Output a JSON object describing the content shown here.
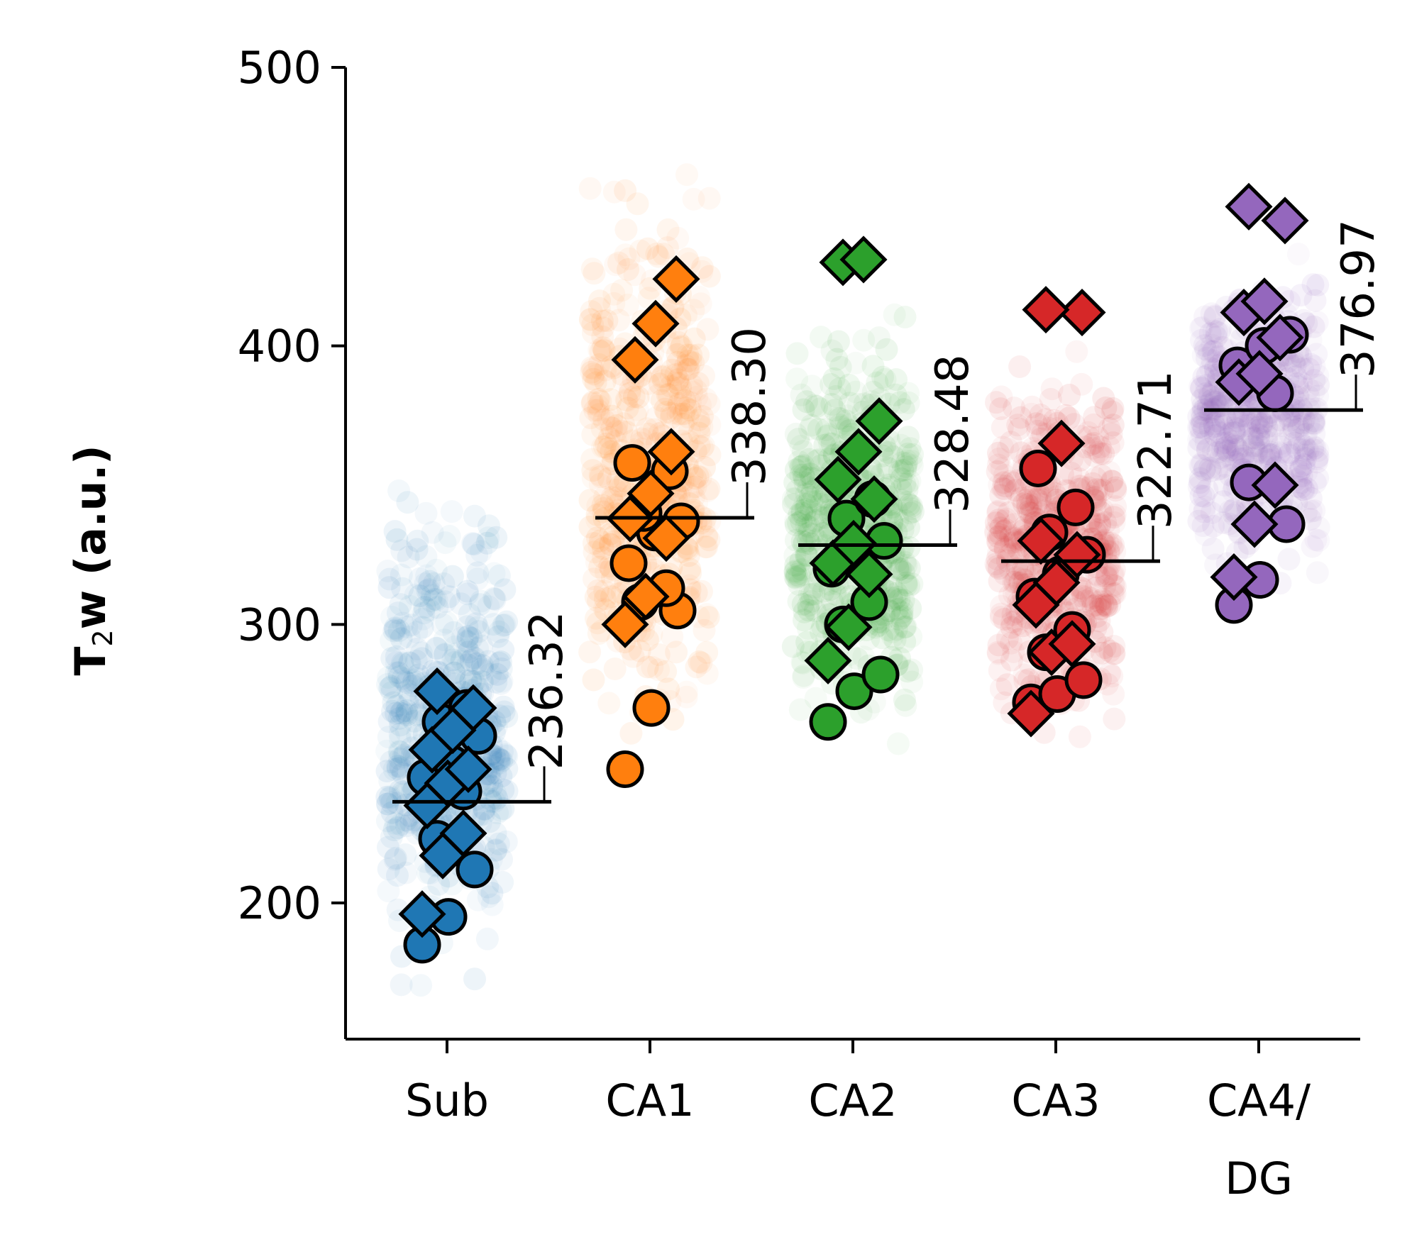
{
  "chart_data": {
    "type": "scatter",
    "ylabel": {
      "main": "T",
      "sub": "2",
      "rest": "w (a.u.)"
    },
    "ylim": [
      150,
      500
    ],
    "yticks": [
      200,
      300,
      400,
      500
    ],
    "categories": [
      {
        "lines": [
          "Sub"
        ]
      },
      {
        "lines": [
          "CA1"
        ]
      },
      {
        "lines": [
          "CA2"
        ]
      },
      {
        "lines": [
          "CA3"
        ]
      },
      {
        "lines": [
          "CA4/",
          "DG"
        ]
      }
    ],
    "series": [
      {
        "color": "#1f77b4",
        "mean": 236.32,
        "mean_label": "236.32",
        "cloud_range": [
          166,
          355
        ],
        "circles": [
          185,
          195,
          212,
          223,
          240,
          245,
          250,
          260,
          265,
          270
        ],
        "diamonds": [
          196,
          217,
          225,
          235,
          243,
          248,
          255,
          262,
          270,
          276
        ]
      },
      {
        "color": "#ff7f0e",
        "mean": 338.3,
        "mean_label": "338.30",
        "cloud_range": [
          250,
          465
        ],
        "circles": [
          248,
          270,
          305,
          308,
          313,
          322,
          333,
          337,
          340,
          355,
          358
        ],
        "diamonds": [
          300,
          310,
          331,
          338,
          347,
          362,
          395,
          408,
          424
        ]
      },
      {
        "color": "#2ca02c",
        "mean": 328.48,
        "mean_label": "328.48",
        "cloud_range": [
          258,
          412
        ],
        "circles": [
          265,
          276,
          282,
          300,
          308,
          320,
          325,
          330,
          338,
          345
        ],
        "diamonds": [
          287,
          299,
          318,
          322,
          329,
          345,
          352,
          362,
          373,
          430,
          431
        ]
      },
      {
        "color": "#d62728",
        "mean": 322.71,
        "mean_label": "322.71",
        "cloud_range": [
          253,
          405
        ],
        "circles": [
          272,
          275,
          280,
          290,
          298,
          310,
          318,
          325,
          333,
          342,
          356
        ],
        "diamonds": [
          268,
          290,
          293,
          307,
          315,
          325,
          330,
          365,
          412,
          413
        ]
      },
      {
        "color": "#9467bd",
        "mean": 376.97,
        "mean_label": "376.97",
        "cloud_range": [
          312,
          435
        ],
        "circles": [
          307,
          316,
          336,
          351,
          383,
          393,
          400,
          404
        ],
        "diamonds": [
          317,
          336,
          350,
          387,
          390,
          403,
          412,
          416,
          445,
          450
        ]
      }
    ]
  }
}
